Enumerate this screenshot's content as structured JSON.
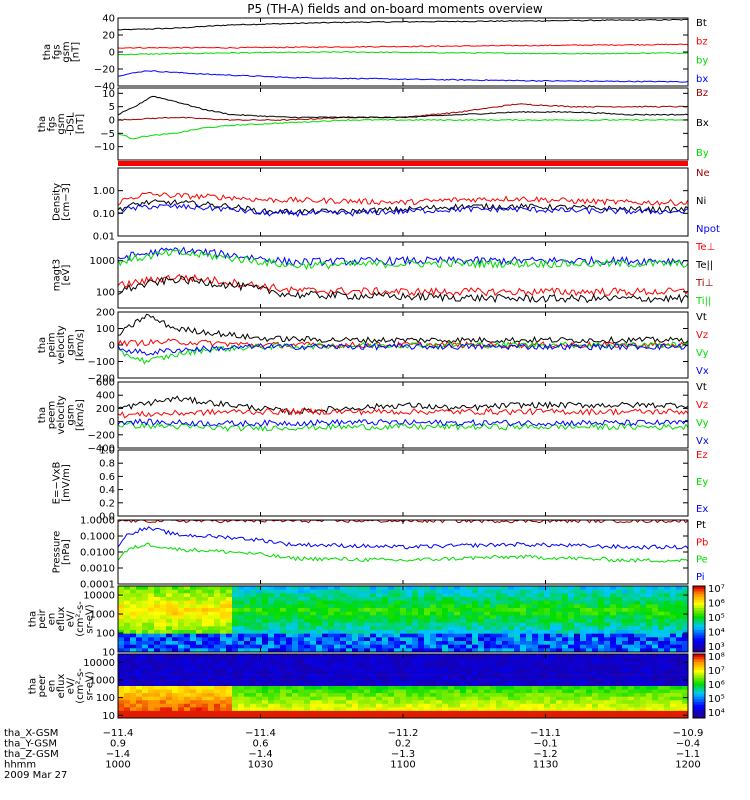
{
  "title": "P5 (TH-A) fields and on-board moments overview",
  "colors": {
    "black": "#000000",
    "red": "#ff0000",
    "darkred": "#a00000",
    "green": "#00dd00",
    "blue": "#0000ff",
    "axis": "#000000"
  },
  "chart_data": [
    {
      "type": "line",
      "ylabel": [
        "tha",
        "fgs",
        "gsm",
        "[nT]"
      ],
      "ylim": [
        -40,
        40
      ],
      "yticks": [
        "40",
        "20",
        "0",
        "−20",
        "−40"
      ],
      "tickvals": [
        40,
        20,
        0,
        -20,
        -40
      ],
      "legend": [
        {
          "name": "Bt",
          "color": "black"
        },
        {
          "name": "bz",
          "color": "red"
        },
        {
          "name": "by",
          "color": "green"
        },
        {
          "name": "bx",
          "color": "blue"
        }
      ],
      "series": [
        {
          "color": "black",
          "x": [
            10.0,
            10.2,
            10.4,
            10.8,
            11.2,
            11.6,
            12.0
          ],
          "y": [
            26,
            28,
            32,
            35,
            36,
            37,
            38
          ]
        },
        {
          "color": "red",
          "x": [
            10.0,
            10.4,
            10.8,
            11.2,
            11.6,
            12.0
          ],
          "y": [
            5,
            5,
            6,
            7,
            8,
            9
          ]
        },
        {
          "color": "green",
          "x": [
            10.0,
            10.4,
            10.8,
            11.2,
            11.6,
            12.0
          ],
          "y": [
            -3,
            -1,
            0,
            -1,
            -2,
            -1
          ]
        },
        {
          "color": "blue",
          "x": [
            10.0,
            10.1,
            10.3,
            10.6,
            11.0,
            11.5,
            12.0
          ],
          "y": [
            -28,
            -22,
            -26,
            -30,
            -32,
            -34,
            -35
          ]
        }
      ]
    },
    {
      "type": "line",
      "ylabel": [
        "tha",
        "fgs",
        "gsm",
        "-DSL",
        "[nT]"
      ],
      "ylim": [
        -15,
        12
      ],
      "yticks": [
        "10",
        "5",
        "0",
        "−5",
        "−10"
      ],
      "tickvals": [
        10,
        5,
        0,
        -5,
        -10
      ],
      "legend": [
        {
          "name": "Bz",
          "color": "darkred"
        },
        {
          "name": "Bx",
          "color": "black"
        },
        {
          "name": "By",
          "color": "green"
        }
      ],
      "series": [
        {
          "color": "darkred",
          "x": [
            10.0,
            10.2,
            10.4,
            10.6,
            10.8,
            11.0,
            11.2,
            11.4,
            11.6,
            11.8,
            12.0
          ],
          "y": [
            0,
            1,
            0,
            0,
            1,
            1,
            3,
            6,
            5,
            5,
            5
          ]
        },
        {
          "color": "black",
          "x": [
            10.0,
            10.06,
            10.12,
            10.2,
            10.3,
            10.4,
            10.6,
            10.8,
            11.0,
            11.2,
            11.4,
            11.6,
            11.8,
            12.0
          ],
          "y": [
            2,
            5,
            9,
            7,
            4,
            2,
            1,
            1,
            1,
            2,
            3,
            3,
            2,
            2
          ]
        },
        {
          "color": "green",
          "x": [
            10.0,
            10.05,
            10.1,
            10.2,
            10.3,
            10.4,
            10.6,
            10.8,
            11.0,
            11.2,
            11.4,
            11.6,
            11.8,
            12.0
          ],
          "y": [
            -5,
            -7,
            -6,
            -5,
            -3,
            -2,
            -1,
            0,
            0,
            0,
            0,
            0,
            0,
            0
          ]
        }
      ]
    },
    {
      "type": "line",
      "ylabel": [
        "Density",
        "[cm−3]"
      ],
      "yscale": "log",
      "ylim": [
        0.01,
        10
      ],
      "yticks": [
        "1.00",
        "0.10",
        "0.01"
      ],
      "tickvals": [
        1,
        0.1,
        0.01
      ],
      "legend": [
        {
          "name": "Ne",
          "color": "darkred"
        },
        {
          "name": "Ni",
          "color": "black"
        },
        {
          "name": "Npot",
          "color": "blue"
        }
      ],
      "series": [
        {
          "color": "red",
          "x": [
            10.0,
            10.1,
            10.2,
            10.4,
            10.5,
            10.8,
            11.0,
            11.2,
            11.4,
            11.6,
            11.8,
            12.0
          ],
          "y": [
            0.3,
            0.7,
            0.6,
            0.5,
            0.4,
            0.35,
            0.3,
            0.4,
            0.45,
            0.35,
            0.3,
            0.3
          ]
        },
        {
          "color": "black",
          "x": [
            10.0,
            10.1,
            10.2,
            10.4,
            10.5,
            10.8,
            11.0,
            11.2,
            11.4,
            11.6,
            11.8,
            12.0
          ],
          "y": [
            0.15,
            0.3,
            0.3,
            0.2,
            0.12,
            0.12,
            0.15,
            0.2,
            0.2,
            0.18,
            0.15,
            0.15
          ]
        },
        {
          "color": "blue",
          "x": [
            10.0,
            10.1,
            10.2,
            10.4,
            10.5,
            10.8,
            11.0,
            11.2,
            11.4,
            11.6,
            11.8,
            12.0
          ],
          "y": [
            0.12,
            0.2,
            0.2,
            0.15,
            0.1,
            0.1,
            0.12,
            0.15,
            0.15,
            0.13,
            0.12,
            0.12
          ]
        }
      ]
    },
    {
      "type": "line",
      "ylabel": [
        "magt3",
        "[eV]"
      ],
      "yscale": "log",
      "ylim": [
        30,
        4000
      ],
      "yticks": [
        "1000",
        "100"
      ],
      "tickvals": [
        1000,
        100
      ],
      "legend": [
        {
          "name": "Te⊥",
          "color": "red"
        },
        {
          "name": "Te||",
          "color": "black"
        },
        {
          "name": "Ti⊥",
          "color": "darkred"
        },
        {
          "name": "Ti||",
          "color": "green"
        }
      ],
      "series": [
        {
          "color": "blue",
          "x": [
            10.0,
            10.2,
            10.4,
            10.6,
            11.0,
            11.4,
            12.0
          ],
          "y": [
            1200,
            2200,
            1500,
            900,
            1000,
            1000,
            1000
          ]
        },
        {
          "color": "green",
          "x": [
            10.0,
            10.2,
            10.4,
            10.6,
            11.0,
            11.4,
            12.0
          ],
          "y": [
            900,
            1800,
            1200,
            700,
            800,
            800,
            800
          ]
        },
        {
          "color": "red",
          "x": [
            10.0,
            10.2,
            10.4,
            10.6,
            11.0,
            11.4,
            12.0
          ],
          "y": [
            150,
            300,
            200,
            110,
            100,
            100,
            100
          ]
        },
        {
          "color": "black",
          "x": [
            10.0,
            10.2,
            10.4,
            10.6,
            11.0,
            11.4,
            12.0
          ],
          "y": [
            100,
            250,
            160,
            80,
            70,
            60,
            60
          ]
        }
      ]
    },
    {
      "type": "line",
      "ylabel": [
        "tha",
        "peim",
        "velocity",
        "gsm",
        "[km/s]"
      ],
      "ylim": [
        -200,
        200
      ],
      "yticks": [
        "200",
        "100",
        "0",
        "−100",
        "−200"
      ],
      "tickvals": [
        200,
        100,
        0,
        -100,
        -200
      ],
      "legend": [
        {
          "name": "Vt",
          "color": "black"
        },
        {
          "name": "Vz",
          "color": "red"
        },
        {
          "name": "Vy",
          "color": "green"
        },
        {
          "name": "Vx",
          "color": "blue"
        }
      ],
      "series": [
        {
          "color": "black",
          "x": [
            10.0,
            10.1,
            10.2,
            10.3,
            10.5,
            10.8,
            11.2,
            11.6,
            12.0
          ],
          "y": [
            60,
            180,
            100,
            80,
            40,
            30,
            30,
            30,
            30
          ]
        },
        {
          "color": "red",
          "x": [
            10.0,
            10.2,
            10.5,
            11.0,
            11.5,
            12.0
          ],
          "y": [
            10,
            20,
            0,
            0,
            0,
            0
          ]
        },
        {
          "color": "green",
          "x": [
            10.0,
            10.1,
            10.2,
            10.3,
            10.5,
            11.0,
            12.0
          ],
          "y": [
            -40,
            -100,
            -60,
            -30,
            -10,
            0,
            0
          ]
        },
        {
          "color": "blue",
          "x": [
            10.0,
            10.1,
            10.2,
            10.5,
            11.0,
            12.0
          ],
          "y": [
            -20,
            -50,
            -30,
            -10,
            -10,
            -10
          ]
        }
      ]
    },
    {
      "type": "line",
      "ylabel": [
        "tha",
        "peem",
        "velocity",
        "gsm",
        "[km/s]"
      ],
      "ylim": [
        -400,
        600
      ],
      "yticks": [
        "600",
        "400",
        "200",
        "0",
        "−200",
        "−400"
      ],
      "tickvals": [
        600,
        400,
        200,
        0,
        -200,
        -400
      ],
      "legend": [
        {
          "name": "Vt",
          "color": "black"
        },
        {
          "name": "Vz",
          "color": "red"
        },
        {
          "name": "Vy",
          "color": "green"
        },
        {
          "name": "Vx",
          "color": "blue"
        }
      ],
      "series": [
        {
          "color": "black",
          "x": [
            10.0,
            10.2,
            10.4,
            10.6,
            10.8,
            11.0,
            11.2,
            11.4,
            11.6,
            11.8,
            12.0
          ],
          "y": [
            200,
            350,
            250,
            150,
            200,
            250,
            200,
            250,
            250,
            250,
            250
          ]
        },
        {
          "color": "red",
          "x": [
            10.0,
            10.4,
            10.8,
            11.2,
            11.6,
            12.0
          ],
          "y": [
            100,
            150,
            150,
            150,
            150,
            150
          ]
        },
        {
          "color": "green",
          "x": [
            10.0,
            10.4,
            10.8,
            11.2,
            11.6,
            12.0
          ],
          "y": [
            -50,
            -100,
            -80,
            -80,
            -80,
            -80
          ]
        },
        {
          "color": "blue",
          "x": [
            10.0,
            10.4,
            10.8,
            11.2,
            11.6,
            12.0
          ],
          "y": [
            0,
            -30,
            -10,
            -20,
            -20,
            -20
          ]
        }
      ]
    },
    {
      "type": "line",
      "ylabel": [
        "E=−VxB",
        "[mV/m]"
      ],
      "ylim": [
        0,
        1
      ],
      "yticks": [
        "1.0",
        "0.8",
        "0.6",
        "0.4",
        "0.2",
        "0.0"
      ],
      "tickvals": [
        1,
        0.8,
        0.6,
        0.4,
        0.2,
        0
      ],
      "legend": [
        {
          "name": "Ez",
          "color": "red"
        },
        {
          "name": "Ey",
          "color": "green"
        },
        {
          "name": "Ex",
          "color": "blue"
        }
      ],
      "series": []
    },
    {
      "type": "line",
      "ylabel": [
        "Pressure",
        "[nPa]"
      ],
      "yscale": "log",
      "ylim": [
        0.0001,
        1
      ],
      "yticks": [
        "1.0000",
        "0.1000",
        "0.0100",
        "0.0010",
        "0.0001"
      ],
      "tickvals": [
        1,
        0.1,
        0.01,
        0.001,
        0.0001
      ],
      "legend": [
        {
          "name": "Pt",
          "color": "black"
        },
        {
          "name": "Pb",
          "color": "red"
        },
        {
          "name": "Pe",
          "color": "green"
        },
        {
          "name": "Pi",
          "color": "blue"
        }
      ],
      "series": [
        {
          "color": "darkred",
          "x": [
            10.0,
            11.0,
            12.0
          ],
          "y": [
            0.9,
            0.9,
            0.9
          ]
        },
        {
          "color": "blue",
          "x": [
            10.0,
            10.1,
            10.2,
            10.4,
            10.6,
            11.0,
            11.4,
            11.8,
            12.0
          ],
          "y": [
            0.02,
            0.3,
            0.12,
            0.08,
            0.03,
            0.02,
            0.03,
            0.02,
            0.02
          ]
        },
        {
          "color": "green",
          "x": [
            10.0,
            10.1,
            10.2,
            10.4,
            10.6,
            11.0,
            11.4,
            11.8,
            12.0
          ],
          "y": [
            0.003,
            0.03,
            0.015,
            0.01,
            0.004,
            0.003,
            0.005,
            0.003,
            0.003
          ]
        }
      ]
    },
    {
      "type": "heatmap",
      "ylabel": [
        "tha",
        "peir",
        "en",
        "eflux",
        "eV/",
        "(cm²-s-",
        "sr-eV)"
      ],
      "yscale": "log",
      "ylim": [
        10,
        30000
      ],
      "yticks": [
        "10000",
        "1000",
        "100",
        "10"
      ],
      "tickvals": [
        10000,
        1000,
        100,
        10
      ],
      "zlabels": [
        "10⁷",
        "10⁶",
        "10⁵",
        "10⁴",
        "10³"
      ],
      "zexp": [
        7,
        6,
        5,
        4,
        3
      ]
    },
    {
      "type": "heatmap",
      "ylabel": [
        "tha",
        "peer",
        "en",
        "eflux",
        "eV/",
        "(cm²-s-",
        "sr-eV)"
      ],
      "yscale": "log",
      "ylim": [
        7,
        30000
      ],
      "yticks": [
        "10000",
        "1000",
        "100",
        "10"
      ],
      "tickvals": [
        10000,
        1000,
        100,
        10
      ],
      "zlabels": [
        "10⁸",
        "10⁷",
        "10⁶",
        "10⁵",
        "10⁴"
      ],
      "zexp": [
        8,
        7,
        6,
        5,
        4
      ]
    }
  ],
  "xaxis": {
    "xlim": [
      10.0,
      12.0
    ],
    "tickvals": [
      10.0,
      10.5,
      11.0,
      11.5,
      12.0
    ],
    "rows": [
      {
        "label": "tha_X-GSM",
        "values": [
          "−11.4",
          "−11.4",
          "−11.2",
          "−11.1",
          "−10.9"
        ]
      },
      {
        "label": "tha_Y-GSM",
        "values": [
          "0.9",
          "0.6",
          "0.2",
          "−0.1",
          "−0.4"
        ]
      },
      {
        "label": "tha_Z-GSM",
        "values": [
          "−1.4",
          "−1.4",
          "−1.3",
          "−1.2",
          "−1.1"
        ]
      },
      {
        "label": "hhmm",
        "values": [
          "1000",
          "1030",
          "1100",
          "1130",
          "1200"
        ]
      }
    ],
    "date": "2009 Mar 27"
  }
}
